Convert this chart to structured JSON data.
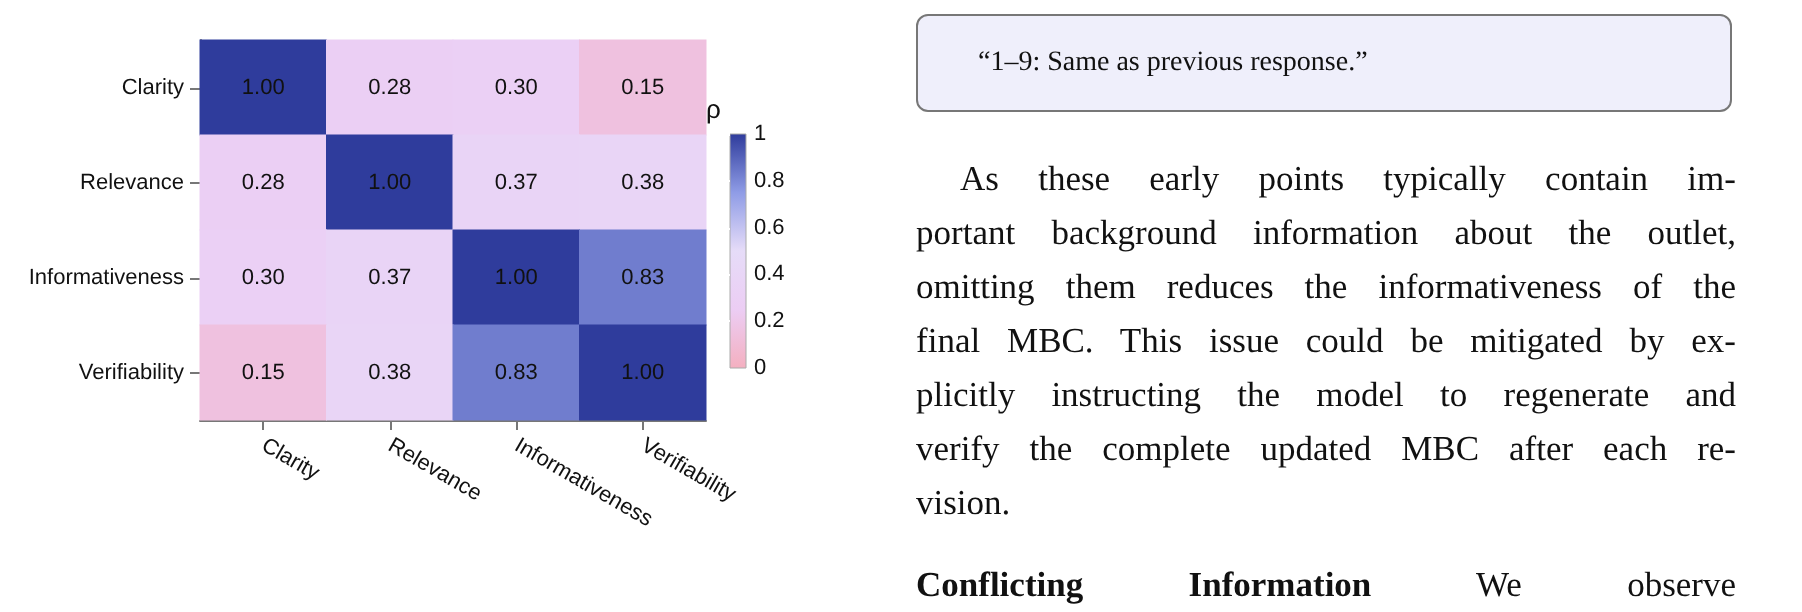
{
  "chart_data": {
    "type": "heatmap",
    "categories": [
      "Clarity",
      "Relevance",
      "Informativeness",
      "Verifiability"
    ],
    "y_categories": [
      "Clarity",
      "Relevance",
      "Informativeness",
      "Verifiability"
    ],
    "cells": [
      [
        1.0,
        0.28,
        0.3,
        0.15
      ],
      [
        0.28,
        1.0,
        0.37,
        0.38
      ],
      [
        0.3,
        0.37,
        1.0,
        0.83
      ],
      [
        0.15,
        0.38,
        0.83,
        1.0
      ]
    ],
    "cell_labels": [
      [
        "1.00",
        "0.28",
        "0.30",
        "0.15"
      ],
      [
        "0.28",
        "1.00",
        "0.37",
        "0.38"
      ],
      [
        "0.30",
        "0.37",
        "1.00",
        "0.83"
      ],
      [
        "0.15",
        "0.38",
        "0.83",
        "1.00"
      ]
    ],
    "clabel": "ρ",
    "clim": [
      0,
      1
    ],
    "cticks": [
      0,
      0.2,
      0.4,
      0.6,
      0.8,
      1
    ],
    "annotations": [
      "“1–9: Same as previous response.”",
      "As these early points typically contain im-\nportant background information about the outlet,\nomitting them reduces the informativeness of the\nfinal MBC. This issue could be mitigated by ex-\nplicitly instructing the model to regenerate and\nverify the complete updated MBC after each re-\nvision.",
      "Conflicting Information",
      "We observe"
    ]
  }
}
